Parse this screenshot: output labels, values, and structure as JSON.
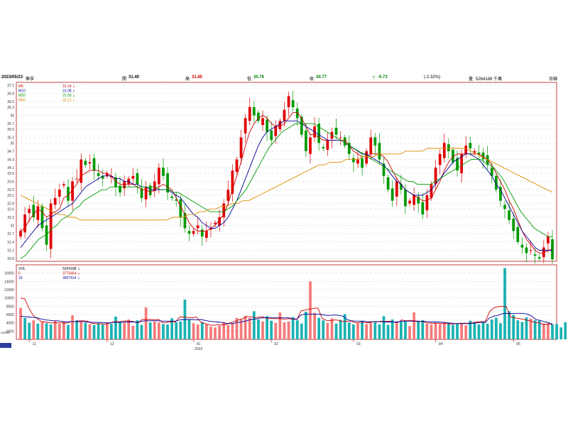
{
  "header": {
    "date": "2023/05/23",
    "name": "華孚",
    "open_label": "開",
    "open_value": "31.40",
    "high_label": "高",
    "high_value": "31.85",
    "low_label": "低",
    "low_value": "30.76",
    "close_label": "收",
    "close_value": "30.77",
    "change_label": "▽",
    "change_value": "-0.73",
    "change_pct": "(-2.32%)",
    "volume_label": "量",
    "volume_value": "5264188 千萬",
    "period": "日線"
  },
  "chart_data": [
    {
      "type": "candlestick",
      "ylim": [
        30.7,
        37.2
      ],
      "y_ticks": [
        "37.1",
        "36.8",
        "36.5",
        "36.3",
        "36",
        "35.7",
        "35.5",
        "35.2",
        "35",
        "34.7",
        "34.4",
        "34.1",
        "33.9",
        "33.6",
        "33.3",
        "33.1",
        "32.8",
        "32.6",
        "32.3",
        "32",
        "31.7",
        "31.4",
        "31.1",
        "30.8"
      ],
      "x_ticks": [
        "11",
        "12",
        "01",
        "02",
        "03",
        "04",
        "05"
      ],
      "x_year_label": "2023",
      "legend": [
        {
          "name": "M5",
          "value": "31.14 ⇣",
          "color": "#cc0000"
        },
        {
          "name": "M10",
          "value": "31.08 ⇣",
          "color": "#000099"
        },
        {
          "name": "M20",
          "value": "31.59 ⇣",
          "color": "#009900"
        },
        {
          "name": "M60",
          "value": "33.21 ⇣",
          "color": "#e08a00"
        }
      ],
      "close_series": [
        31.8,
        32.4,
        32.6,
        32.3,
        32.7,
        31.9,
        31.3,
        32.8,
        33.0,
        33.3,
        33.5,
        32.9,
        33.6,
        33.7,
        34.4,
        34.2,
        34.3,
        34.0,
        33.8,
        33.7,
        33.9,
        33.8,
        33.4,
        33.2,
        33.6,
        33.7,
        33.8,
        33.5,
        33.0,
        33.4,
        33.1,
        33.6,
        34.1,
        33.8,
        33.2,
        33.0,
        32.9,
        32.3,
        31.9,
        31.7,
        31.8,
        32.0,
        31.6,
        31.8,
        31.9,
        32.1,
        32.3,
        32.8,
        33.3,
        34.0,
        34.4,
        35.2,
        35.9,
        36.3,
        36.0,
        35.8,
        35.9,
        35.4,
        35.1,
        35.6,
        35.8,
        36.2,
        36.7,
        36.3,
        35.9,
        35.3,
        34.7,
        35.2,
        35.6,
        35.0,
        34.8,
        35.1,
        35.4,
        35.3,
        35.2,
        34.9,
        34.6,
        34.3,
        34.4,
        34.1,
        34.7,
        35.2,
        34.9,
        34.4,
        33.8,
        33.3,
        32.9,
        33.6,
        33.3,
        32.7,
        32.9,
        33.1,
        32.8,
        32.4,
        33.1,
        33.5,
        34.1,
        34.6,
        35.0,
        34.7,
        34.3,
        34.0,
        34.6,
        34.9,
        34.8,
        34.7,
        34.6,
        34.4,
        34.2,
        33.8,
        33.3,
        32.9,
        32.6,
        32.2,
        31.8,
        31.4,
        31.2,
        31.0,
        31.1,
        30.9,
        30.8,
        31.2,
        31.6,
        30.77
      ],
      "ma": {
        "M5": [
          31.8,
          31.9,
          32.2,
          32.4,
          32.6,
          32.5,
          32.3,
          32.4,
          32.5,
          32.6,
          33.0,
          33.1,
          33.3,
          33.5,
          33.8,
          33.9,
          34.0,
          34.0,
          34.0,
          33.9,
          33.9,
          33.8,
          33.6,
          33.5,
          33.5,
          33.5,
          33.5,
          33.4,
          33.3,
          33.3,
          33.2,
          33.3,
          33.4,
          33.5,
          33.4,
          33.3,
          33.0,
          32.7,
          32.4,
          32.1,
          31.9,
          31.8,
          31.8,
          31.8,
          31.9,
          32.0,
          32.2,
          32.4,
          32.8,
          33.3,
          33.8,
          34.3,
          34.9,
          35.4,
          35.7,
          35.9,
          36.0,
          35.9,
          35.7,
          35.6,
          35.6,
          35.7,
          35.9,
          36.1,
          36.1,
          35.9,
          35.6,
          35.3,
          35.3,
          35.2,
          35.1,
          35.1,
          35.1,
          35.1,
          35.1,
          35.1,
          34.9,
          34.7,
          34.6,
          34.5,
          34.5,
          34.6,
          34.6,
          34.6,
          34.5,
          34.3,
          34.0,
          33.7,
          33.5,
          33.3,
          33.2,
          33.1,
          33.0,
          32.9,
          32.9,
          33.0,
          33.3,
          33.6,
          34.0,
          34.3,
          34.5,
          34.6,
          34.6,
          34.6,
          34.6,
          34.6,
          34.6,
          34.5,
          34.4,
          34.2,
          33.9,
          33.6,
          33.3,
          32.9,
          32.6,
          32.2,
          31.8,
          31.5,
          31.3,
          31.1,
          31.0,
          31.0,
          31.1,
          31.14
        ],
        "M10": [
          31.2,
          31.4,
          31.6,
          31.8,
          32.0,
          32.1,
          32.2,
          32.3,
          32.4,
          32.5,
          32.6,
          32.7,
          32.8,
          33.0,
          33.2,
          33.4,
          33.5,
          33.6,
          33.7,
          33.8,
          33.8,
          33.8,
          33.7,
          33.7,
          33.6,
          33.6,
          33.5,
          33.5,
          33.4,
          33.4,
          33.3,
          33.3,
          33.3,
          33.3,
          33.3,
          33.2,
          33.1,
          33.0,
          32.8,
          32.6,
          32.4,
          32.3,
          32.1,
          32.0,
          31.9,
          31.9,
          32.0,
          32.1,
          32.3,
          32.6,
          32.9,
          33.3,
          33.7,
          34.1,
          34.5,
          34.9,
          35.2,
          35.4,
          35.5,
          35.6,
          35.7,
          35.8,
          35.8,
          35.8,
          35.8,
          35.7,
          35.6,
          35.5,
          35.4,
          35.3,
          35.2,
          35.1,
          35.1,
          35.1,
          35.1,
          35.0,
          34.9,
          34.8,
          34.7,
          34.6,
          34.6,
          34.5,
          34.4,
          34.3,
          34.2,
          34.0,
          33.8,
          33.6,
          33.5,
          33.3,
          33.2,
          33.1,
          33.1,
          33.1,
          33.2,
          33.3,
          33.5,
          33.7,
          33.9,
          34.1,
          34.3,
          34.4,
          34.5,
          34.6,
          34.6,
          34.5,
          34.4,
          34.2,
          34.0,
          33.8,
          33.5,
          33.3,
          33.0,
          32.7,
          32.4,
          32.1,
          31.8,
          31.6,
          31.4,
          31.2,
          31.1,
          31.1,
          31.1,
          31.08
        ],
        "M20": [
          30.8,
          30.9,
          31.1,
          31.3,
          31.5,
          31.6,
          31.7,
          31.9,
          32.0,
          32.2,
          32.3,
          32.4,
          32.6,
          32.7,
          32.9,
          33.0,
          33.1,
          33.2,
          33.3,
          33.3,
          33.4,
          33.4,
          33.4,
          33.4,
          33.4,
          33.4,
          33.4,
          33.4,
          33.4,
          33.4,
          33.4,
          33.3,
          33.3,
          33.3,
          33.2,
          33.2,
          33.1,
          33.0,
          32.9,
          32.8,
          32.7,
          32.6,
          32.5,
          32.5,
          32.5,
          32.5,
          32.6,
          32.7,
          32.9,
          33.1,
          33.3,
          33.6,
          33.9,
          34.2,
          34.5,
          34.8,
          35.0,
          35.2,
          35.4,
          35.5,
          35.6,
          35.7,
          35.7,
          35.7,
          35.7,
          35.7,
          35.6,
          35.5,
          35.4,
          35.3,
          35.2,
          35.1,
          35.0,
          34.9,
          34.8,
          34.7,
          34.6,
          34.5,
          34.4,
          34.3,
          34.2,
          34.1,
          34.0,
          33.9,
          33.8,
          33.7,
          33.6,
          33.6,
          33.5,
          33.5,
          33.5,
          33.5,
          33.6,
          33.7,
          33.8,
          33.9,
          34.0,
          34.1,
          34.2,
          34.3,
          34.4,
          34.4,
          34.4,
          34.3,
          34.2,
          34.1,
          33.9,
          33.7,
          33.4,
          33.1,
          32.8,
          32.5,
          32.3,
          32.1,
          31.9,
          31.8,
          31.7,
          31.6,
          31.59
        ],
        "M60": [
          33.1,
          33.0,
          32.9,
          32.8,
          32.7,
          32.6,
          32.5,
          32.4,
          32.4,
          32.3,
          32.3,
          32.2,
          32.2,
          32.2,
          32.2,
          32.2,
          32.2,
          32.2,
          32.2,
          32.2,
          32.2,
          32.2,
          32.2,
          32.2,
          32.2,
          32.2,
          32.2,
          32.2,
          32.3,
          32.3,
          32.3,
          32.4,
          32.4,
          32.5,
          32.5,
          32.6,
          32.6,
          32.7,
          32.7,
          32.8,
          32.8,
          32.9,
          32.9,
          33.0,
          33.1,
          33.2,
          33.3,
          33.4,
          33.5,
          33.6,
          33.7,
          33.8,
          33.9,
          34.0,
          34.1,
          34.2,
          34.2,
          34.3,
          34.3,
          34.3,
          34.4,
          34.4,
          34.4,
          34.5,
          34.5,
          34.5,
          34.6,
          34.6,
          34.6,
          34.6,
          34.6,
          34.7,
          34.7,
          34.7,
          34.7,
          34.8,
          34.8,
          34.8,
          34.8,
          34.8,
          34.8,
          34.8,
          34.8,
          34.7,
          34.6,
          34.5,
          34.4,
          34.3,
          34.2,
          34.1,
          34.0,
          33.9,
          33.8,
          33.7,
          33.6,
          33.5,
          33.4,
          33.3,
          33.21
        ]
      }
    },
    {
      "type": "bar",
      "title": "VOL",
      "ylim": [
        0,
        18000
      ],
      "y_ticks": [
        "16000",
        "14000",
        "12000",
        "10000",
        "8000",
        "6000",
        "4000",
        "2000"
      ],
      "y_unit": "x1000",
      "legend": [
        {
          "name": "VOL",
          "value": "5264188 ⇣",
          "color": "#000000"
        },
        {
          "name": "5",
          "value": "3775454 ⇣",
          "color": "#cc0000"
        },
        {
          "name": "10",
          "value": "3557414 ⇣",
          "color": "#000099"
        }
      ],
      "values": [
        7600,
        5200,
        4000,
        4600,
        3800,
        4200,
        3900,
        3600,
        4500,
        3800,
        4200,
        3500,
        5800,
        4600,
        4400,
        4000,
        3700,
        3500,
        3900,
        3600,
        4000,
        3800,
        5500,
        4300,
        4000,
        4800,
        3300,
        4600,
        3500,
        7700,
        4100,
        4300,
        4100,
        3700,
        3600,
        5100,
        4100,
        4300,
        9600,
        4800,
        3900,
        3600,
        4200,
        3600,
        3100,
        2900,
        3300,
        4200,
        3500,
        3900,
        5200,
        4800,
        5700,
        5200,
        6800,
        4800,
        4300,
        5600,
        4500,
        4000,
        6500,
        4100,
        4300,
        5400,
        4600,
        3800,
        6700,
        14000,
        6400,
        5200,
        4600,
        4000,
        5100,
        3800,
        4700,
        6100,
        4100,
        3600,
        3900,
        4500,
        3700,
        4300,
        4100,
        3600,
        5600,
        3500,
        4800,
        3900,
        4300,
        4400,
        3200,
        6500,
        4300,
        4600,
        3800,
        3600,
        4000,
        3700,
        4200,
        4000,
        3500,
        3700,
        3800,
        3400,
        4500,
        4200,
        3600,
        4100,
        3800,
        4800,
        5200,
        3900,
        17200,
        6800,
        5900,
        4600,
        4200,
        5300,
        5000,
        4600,
        4500,
        3800,
        3900,
        3600,
        3700,
        2900,
        4100,
        5264
      ],
      "up": [
        1,
        0,
        0,
        1,
        0,
        1,
        0,
        0,
        1,
        1,
        1,
        0,
        1,
        0,
        1,
        0,
        1,
        0,
        0,
        0,
        1,
        0,
        0,
        0,
        1,
        1,
        1,
        0,
        0,
        1,
        0,
        1,
        1,
        0,
        0,
        0,
        0,
        0,
        0,
        0,
        1,
        1,
        0,
        1,
        1,
        1,
        1,
        1,
        1,
        1,
        1,
        1,
        1,
        1,
        0,
        0,
        1,
        0,
        0,
        1,
        1,
        1,
        1,
        0,
        0,
        0,
        0,
        1,
        1,
        0,
        0,
        1,
        1,
        0,
        0,
        0,
        0,
        0,
        1,
        0,
        1,
        1,
        0,
        0,
        0,
        0,
        0,
        1,
        0,
        0,
        1,
        1,
        0,
        0,
        1,
        1,
        1,
        1,
        1,
        0,
        0,
        0,
        1,
        1,
        0,
        0,
        0,
        0,
        0,
        0,
        0,
        0,
        0,
        0,
        0,
        0,
        0,
        0,
        1,
        0,
        0,
        1,
        1,
        0
      ],
      "ma5": [
        10000,
        9800,
        7500,
        5800,
        5000,
        4300,
        4200,
        4000,
        4000,
        4000,
        4000,
        3900,
        4300,
        4300,
        4500,
        4500,
        4400,
        3900,
        3800,
        3800,
        3700,
        3800,
        4200,
        4300,
        4300,
        4500,
        4400,
        4300,
        4000,
        4800,
        4800,
        4800,
        4700,
        4800,
        4000,
        4100,
        4300,
        4200,
        5400,
        5400,
        5300,
        5200,
        5400,
        4200,
        3800,
        3500,
        3400,
        3500,
        3500,
        3600,
        4000,
        4300,
        4700,
        5000,
        5500,
        5500,
        5200,
        5400,
        5400,
        5000,
        5000,
        5000,
        5000,
        4900,
        5000,
        4900,
        4800,
        6900,
        7100,
        7300,
        7500,
        7600,
        5100,
        4600,
        4500,
        4700,
        4600,
        4300,
        4400,
        4400,
        4000,
        4100,
        4100,
        4000,
        4300,
        4200,
        4400,
        4300,
        4400,
        4200,
        4000,
        4700,
        4500,
        4600,
        4500,
        4400,
        4300,
        4000,
        3900,
        3900,
        3900,
        3800,
        3800,
        3700,
        3800,
        3900,
        3900,
        3900,
        4000,
        4200,
        4300,
        4300,
        6700,
        7600,
        7900,
        8000,
        7900,
        5400,
        5200,
        5000,
        4900,
        4600,
        4400,
        4100,
        3900,
        3600,
        3700,
        3775
      ],
      "ma10": [
        5600,
        5500,
        5400,
        5300,
        5200,
        4900,
        4700,
        4600,
        4500,
        4500,
        4300,
        4200,
        4300,
        4300,
        4300,
        4300,
        4200,
        4100,
        4100,
        4100,
        4000,
        4000,
        4100,
        4100,
        4100,
        4200,
        4200,
        4200,
        4100,
        4400,
        4500,
        4500,
        4500,
        4500,
        4400,
        4400,
        4400,
        4400,
        4700,
        4800,
        4800,
        4800,
        4700,
        4800,
        4600,
        4400,
        4300,
        4200,
        4100,
        3900,
        3800,
        3900,
        4100,
        4300,
        4500,
        4800,
        4900,
        5100,
        5200,
        5300,
        5200,
        5200,
        5200,
        5200,
        5200,
        5000,
        4900,
        5900,
        6100,
        6100,
        6100,
        6100,
        6000,
        5800,
        5800,
        5900,
        5800,
        5600,
        4800,
        4500,
        4400,
        4400,
        4400,
        4200,
        4300,
        4300,
        4300,
        4200,
        4200,
        4200,
        4200,
        4400,
        4400,
        4400,
        4400,
        4300,
        4400,
        4300,
        4200,
        4200,
        4200,
        4100,
        4000,
        3900,
        3800,
        3800,
        3800,
        3800,
        3900,
        4000,
        4100,
        4100,
        5200,
        5600,
        5800,
        6200,
        6300,
        6200,
        6300,
        6300,
        6300,
        6100,
        5700,
        4800,
        4600,
        4300,
        4100,
        3557
      ]
    }
  ]
}
